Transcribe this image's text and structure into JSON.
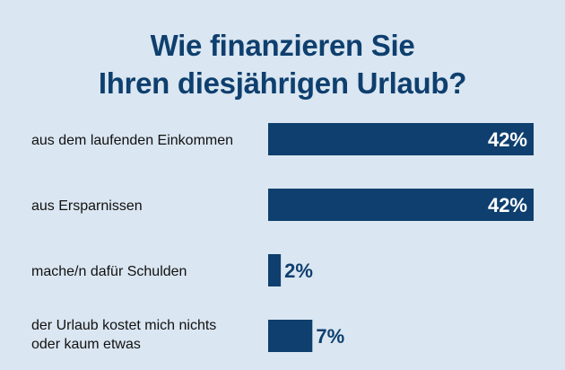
{
  "title_line1": "Wie finanzieren Sie",
  "title_line2": "Ihren diesjährigen Urlaub?",
  "colors": {
    "background": "#dae6f1",
    "bar": "#0e3f6e",
    "title": "#0e3f6e"
  },
  "chart_data": {
    "type": "bar",
    "orientation": "horizontal",
    "title": "Wie finanzieren Sie Ihren diesjährigen Urlaub?",
    "categories": [
      [
        "aus dem laufenden Einkommen"
      ],
      [
        "aus Ersparnissen"
      ],
      [
        "mache/n dafür Schulden"
      ],
      [
        "der Urlaub kostet mich nichts",
        "oder kaum etwas"
      ]
    ],
    "values": [
      42,
      42,
      2,
      7
    ],
    "value_labels": [
      "42%",
      "42%",
      "2%",
      "7%"
    ],
    "unit": "%",
    "xlim": [
      0,
      42
    ],
    "grid": false,
    "legend": "none"
  }
}
